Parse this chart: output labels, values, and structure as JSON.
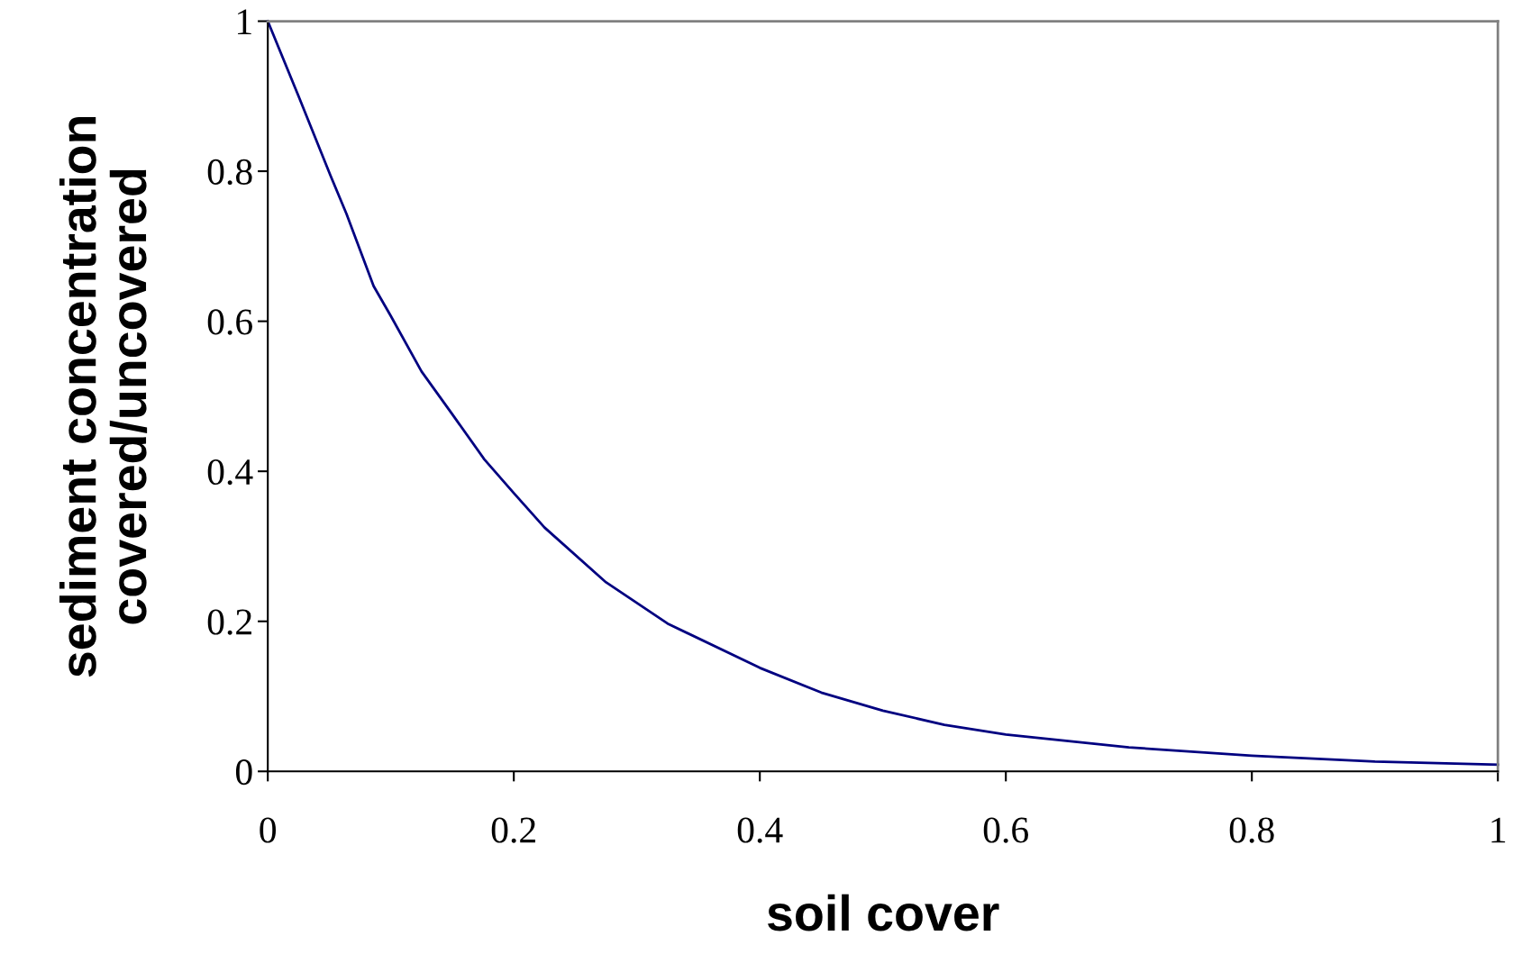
{
  "chart_data": {
    "type": "line",
    "xlabel": "soil cover",
    "ylabel": "sediment concentration\ncovered/uncovered",
    "x": [
      0,
      0.025,
      0.051,
      0.064,
      0.086,
      0.1,
      0.125,
      0.15,
      0.176,
      0.2,
      0.225,
      0.275,
      0.325,
      0.4,
      0.45,
      0.5,
      0.55,
      0.6,
      0.7,
      0.8,
      0.9,
      1
    ],
    "series": [
      {
        "color": "#000080",
        "values": [
          1.0,
          0.9,
          0.794,
          0.743,
          0.647,
          0.607,
          0.533,
          0.476,
          0.416,
          0.371,
          0.325,
          0.252,
          0.197,
          0.138,
          0.105,
          0.081,
          0.062,
          0.049,
          0.032,
          0.021,
          0.013,
          0.009
        ]
      }
    ],
    "xlim": [
      0,
      1
    ],
    "ylim": [
      0,
      1
    ],
    "xticks": [
      0,
      0.2,
      0.4,
      0.6,
      0.8,
      1
    ],
    "yticks": [
      0,
      0.2,
      0.4,
      0.6,
      0.8,
      1
    ],
    "grid": false,
    "legend": false,
    "marker": "none",
    "line_style": "solid"
  }
}
